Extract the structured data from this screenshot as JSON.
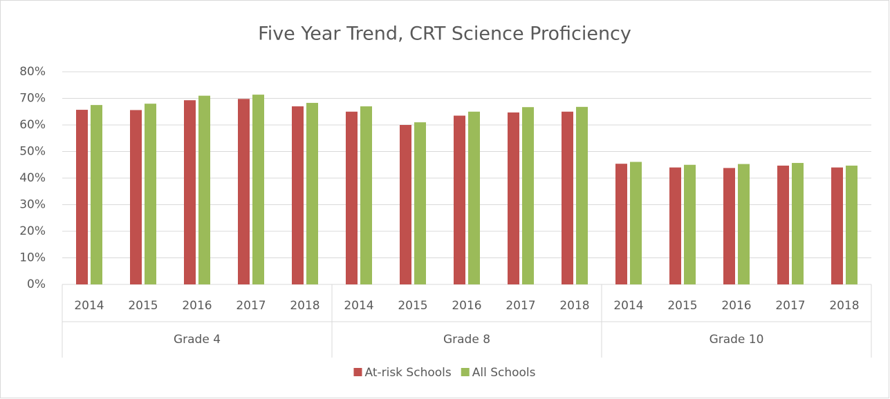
{
  "chart_data": {
    "type": "bar",
    "title": "Five Year Trend, CRT Science Proficiency",
    "groups": [
      {
        "name": "Grade 4",
        "categories": [
          "2014",
          "2015",
          "2016",
          "2017",
          "2018"
        ]
      },
      {
        "name": "Grade 8",
        "categories": [
          "2014",
          "2015",
          "2016",
          "2017",
          "2018"
        ]
      },
      {
        "name": "Grade 10",
        "categories": [
          "2014",
          "2015",
          "2016",
          "2017",
          "2018"
        ]
      }
    ],
    "series": [
      {
        "name": "At-risk Schools",
        "color": "#c0504d",
        "values": [
          65.7,
          65.6,
          69.3,
          69.8,
          67,
          65,
          60,
          63.5,
          64.7,
          65,
          45.4,
          44,
          43.8,
          44.7,
          44
        ]
      },
      {
        "name": "All Schools",
        "color": "#9bbb59",
        "values": [
          67.5,
          68,
          71,
          71.4,
          68.3,
          67,
          61,
          65,
          66.7,
          66.8,
          46.1,
          45,
          45.3,
          45.7,
          44.7
        ]
      }
    ],
    "ylim": [
      0,
      80
    ],
    "yticks": [
      {
        "value": 0,
        "label": "0%"
      },
      {
        "value": 10,
        "label": "10%"
      },
      {
        "value": 20,
        "label": "20%"
      },
      {
        "value": 30,
        "label": "30%"
      },
      {
        "value": 40,
        "label": "40%"
      },
      {
        "value": 50,
        "label": "50%"
      },
      {
        "value": 60,
        "label": "60%"
      },
      {
        "value": 70,
        "label": "70%"
      },
      {
        "value": 80,
        "label": "80%"
      }
    ],
    "grid": true,
    "legend": "bottom"
  }
}
